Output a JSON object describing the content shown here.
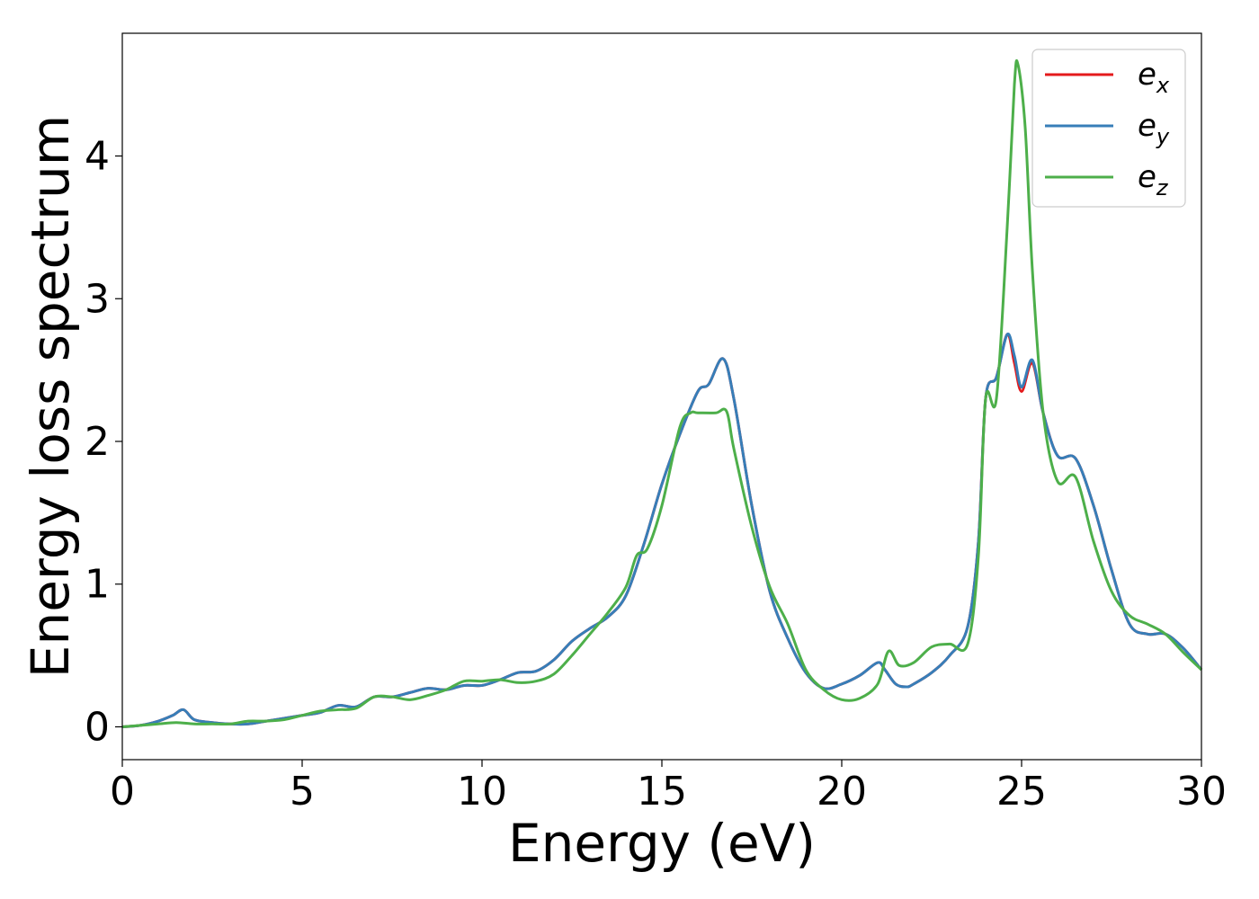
{
  "chart_data": {
    "type": "line",
    "title": "",
    "xlabel": "Energy (eV)",
    "ylabel": "Energy loss spectrum",
    "xlim": [
      0,
      30
    ],
    "ylim": [
      -0.23,
      4.86
    ],
    "xticks": [
      0,
      5,
      10,
      15,
      20,
      25,
      30
    ],
    "yticks": [
      0,
      1,
      2,
      3,
      4
    ],
    "grid": false,
    "legend_position": "top-right",
    "series": [
      {
        "name": "e_x",
        "color": "#e41a1c",
        "x": [
          0,
          0.5,
          1,
          1.4,
          1.7,
          2,
          2.5,
          3,
          3.5,
          4,
          4.5,
          5,
          5.5,
          6,
          6.5,
          7,
          7.5,
          8,
          8.5,
          9,
          9.5,
          10,
          10.5,
          11,
          11.5,
          12,
          12.5,
          13,
          13.5,
          14,
          14.5,
          15,
          15.5,
          16,
          16.3,
          16.7,
          17,
          17.5,
          18,
          18.5,
          19,
          19.5,
          20,
          20.5,
          21,
          21.2,
          21.5,
          21.8,
          22,
          22.5,
          23,
          23.5,
          23.8,
          24,
          24.3,
          24.6,
          24.8,
          25,
          25.3,
          25.6,
          26,
          26.5,
          27,
          27.5,
          28,
          28.5,
          29,
          29.5,
          30
        ],
        "y": [
          0.0,
          0.01,
          0.04,
          0.08,
          0.12,
          0.05,
          0.03,
          0.02,
          0.02,
          0.04,
          0.06,
          0.08,
          0.1,
          0.15,
          0.14,
          0.21,
          0.21,
          0.24,
          0.27,
          0.26,
          0.29,
          0.29,
          0.33,
          0.38,
          0.39,
          0.47,
          0.6,
          0.69,
          0.77,
          0.92,
          1.28,
          1.7,
          2.05,
          2.35,
          2.4,
          2.58,
          2.3,
          1.55,
          0.95,
          0.62,
          0.38,
          0.27,
          0.3,
          0.36,
          0.45,
          0.4,
          0.3,
          0.28,
          0.3,
          0.38,
          0.5,
          0.7,
          1.3,
          2.3,
          2.45,
          2.75,
          2.55,
          2.35,
          2.55,
          2.2,
          1.9,
          1.88,
          1.55,
          1.1,
          0.72,
          0.65,
          0.65,
          0.55,
          0.4
        ]
      },
      {
        "name": "e_y",
        "color": "#377eb8",
        "x": [
          0,
          0.5,
          1,
          1.4,
          1.7,
          2,
          2.5,
          3,
          3.5,
          4,
          4.5,
          5,
          5.5,
          6,
          6.5,
          7,
          7.5,
          8,
          8.5,
          9,
          9.5,
          10,
          10.5,
          11,
          11.5,
          12,
          12.5,
          13,
          13.5,
          14,
          14.5,
          15,
          15.5,
          16,
          16.3,
          16.7,
          17,
          17.5,
          18,
          18.5,
          19,
          19.5,
          20,
          20.5,
          21,
          21.2,
          21.5,
          21.8,
          22,
          22.5,
          23,
          23.5,
          23.8,
          24,
          24.3,
          24.6,
          24.8,
          25,
          25.3,
          25.6,
          26,
          26.5,
          27,
          27.5,
          28,
          28.5,
          29,
          29.5,
          30
        ],
        "y": [
          0.0,
          0.01,
          0.04,
          0.08,
          0.12,
          0.05,
          0.03,
          0.02,
          0.02,
          0.04,
          0.06,
          0.08,
          0.1,
          0.15,
          0.14,
          0.21,
          0.21,
          0.24,
          0.27,
          0.26,
          0.29,
          0.29,
          0.33,
          0.38,
          0.39,
          0.47,
          0.6,
          0.69,
          0.77,
          0.92,
          1.28,
          1.7,
          2.05,
          2.35,
          2.4,
          2.58,
          2.3,
          1.55,
          0.95,
          0.62,
          0.38,
          0.27,
          0.3,
          0.36,
          0.45,
          0.4,
          0.3,
          0.28,
          0.3,
          0.38,
          0.5,
          0.7,
          1.3,
          2.3,
          2.45,
          2.75,
          2.6,
          2.38,
          2.57,
          2.2,
          1.9,
          1.88,
          1.55,
          1.1,
          0.72,
          0.65,
          0.65,
          0.55,
          0.4
        ]
      },
      {
        "name": "e_z",
        "color": "#4daf4a",
        "x": [
          0,
          0.5,
          1,
          1.5,
          2,
          2.5,
          3,
          3.5,
          4,
          4.5,
          5,
          5.5,
          6,
          6.5,
          7,
          7.5,
          8,
          8.5,
          9,
          9.5,
          10,
          10.5,
          11,
          11.5,
          12,
          12.5,
          13,
          13.5,
          14,
          14.3,
          14.6,
          15,
          15.5,
          15.8,
          16,
          16.5,
          16.8,
          17,
          17.5,
          18,
          18.5,
          19,
          19.5,
          20,
          20.5,
          21,
          21.3,
          21.6,
          22,
          22.5,
          23,
          23.5,
          23.8,
          24,
          24.3,
          24.6,
          24.8,
          24.9,
          25.1,
          25.3,
          25.6,
          26,
          26.5,
          27,
          27.5,
          28,
          28.5,
          29,
          29.5,
          30
        ],
        "y": [
          0.0,
          0.01,
          0.02,
          0.03,
          0.02,
          0.02,
          0.02,
          0.04,
          0.04,
          0.05,
          0.08,
          0.11,
          0.12,
          0.13,
          0.21,
          0.21,
          0.19,
          0.22,
          0.26,
          0.32,
          0.32,
          0.33,
          0.31,
          0.32,
          0.37,
          0.5,
          0.65,
          0.8,
          0.98,
          1.2,
          1.25,
          1.55,
          2.1,
          2.2,
          2.2,
          2.2,
          2.21,
          1.95,
          1.4,
          0.98,
          0.72,
          0.4,
          0.26,
          0.19,
          0.2,
          0.3,
          0.53,
          0.43,
          0.45,
          0.56,
          0.58,
          0.58,
          1.2,
          2.3,
          2.3,
          3.5,
          4.5,
          4.64,
          4.2,
          3.2,
          2.2,
          1.72,
          1.75,
          1.3,
          0.95,
          0.78,
          0.72,
          0.65,
          0.52,
          0.4
        ]
      }
    ]
  },
  "legend": {
    "items": [
      {
        "base": "e",
        "sub": "x",
        "color": "#e41a1c"
      },
      {
        "base": "e",
        "sub": "y",
        "color": "#377eb8"
      },
      {
        "base": "e",
        "sub": "z",
        "color": "#4daf4a"
      }
    ]
  }
}
